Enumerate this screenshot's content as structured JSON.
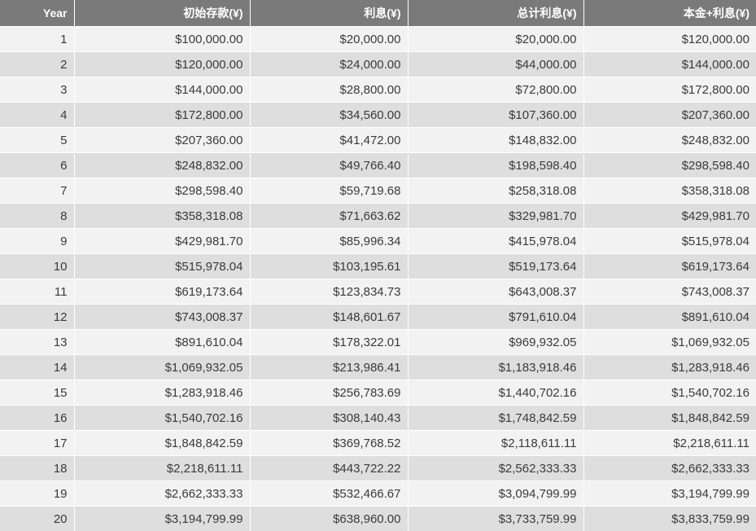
{
  "table": {
    "headers": [
      "Year",
      "初始存款(¥)",
      "利息(¥)",
      "总计利息(¥)",
      "本金+利息(¥)"
    ],
    "rows": [
      [
        "1",
        "$100,000.00",
        "$20,000.00",
        "$20,000.00",
        "$120,000.00"
      ],
      [
        "2",
        "$120,000.00",
        "$24,000.00",
        "$44,000.00",
        "$144,000.00"
      ],
      [
        "3",
        "$144,000.00",
        "$28,800.00",
        "$72,800.00",
        "$172,800.00"
      ],
      [
        "4",
        "$172,800.00",
        "$34,560.00",
        "$107,360.00",
        "$207,360.00"
      ],
      [
        "5",
        "$207,360.00",
        "$41,472.00",
        "$148,832.00",
        "$248,832.00"
      ],
      [
        "6",
        "$248,832.00",
        "$49,766.40",
        "$198,598.40",
        "$298,598.40"
      ],
      [
        "7",
        "$298,598.40",
        "$59,719.68",
        "$258,318.08",
        "$358,318.08"
      ],
      [
        "8",
        "$358,318.08",
        "$71,663.62",
        "$329,981.70",
        "$429,981.70"
      ],
      [
        "9",
        "$429,981.70",
        "$85,996.34",
        "$415,978.04",
        "$515,978.04"
      ],
      [
        "10",
        "$515,978.04",
        "$103,195.61",
        "$519,173.64",
        "$619,173.64"
      ],
      [
        "11",
        "$619,173.64",
        "$123,834.73",
        "$643,008.37",
        "$743,008.37"
      ],
      [
        "12",
        "$743,008.37",
        "$148,601.67",
        "$791,610.04",
        "$891,610.04"
      ],
      [
        "13",
        "$891,610.04",
        "$178,322.01",
        "$969,932.05",
        "$1,069,932.05"
      ],
      [
        "14",
        "$1,069,932.05",
        "$213,986.41",
        "$1,183,918.46",
        "$1,283,918.46"
      ],
      [
        "15",
        "$1,283,918.46",
        "$256,783.69",
        "$1,440,702.16",
        "$1,540,702.16"
      ],
      [
        "16",
        "$1,540,702.16",
        "$308,140.43",
        "$1,748,842.59",
        "$1,848,842.59"
      ],
      [
        "17",
        "$1,848,842.59",
        "$369,768.52",
        "$2,118,611.11",
        "$2,218,611.11"
      ],
      [
        "18",
        "$2,218,611.11",
        "$443,722.22",
        "$2,562,333.33",
        "$2,662,333.33"
      ],
      [
        "19",
        "$2,662,333.33",
        "$532,466.67",
        "$3,094,799.99",
        "$3,194,799.99"
      ],
      [
        "20",
        "$3,194,799.99",
        "$638,960.00",
        "$3,733,759.99",
        "$3,833,759.99"
      ]
    ]
  }
}
